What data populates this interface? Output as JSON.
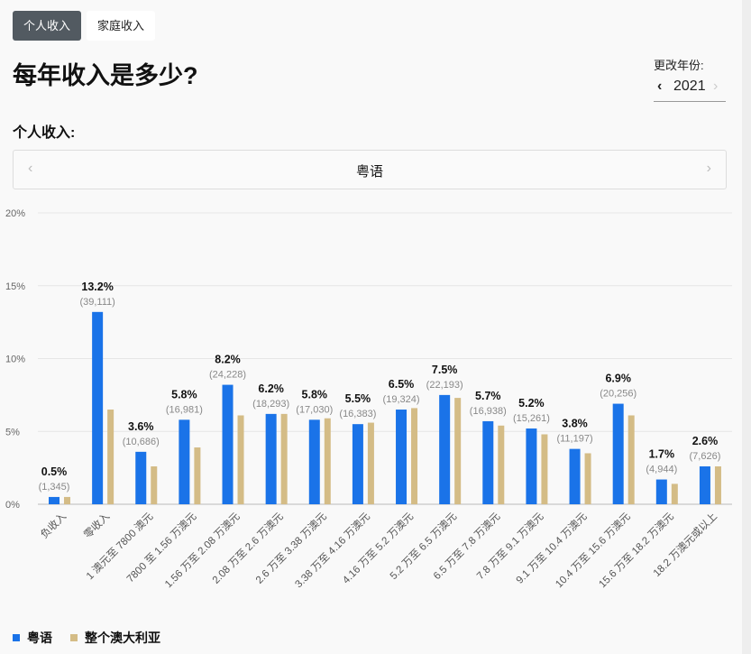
{
  "tabs": [
    "个人收入",
    "家庭收入"
  ],
  "title": "每年收入是多少?",
  "year_selector": {
    "label": "更改年份:",
    "value": "2021",
    "prev_icon": "chevron-left-icon",
    "next_icon": "chevron-right-icon"
  },
  "subtitle": "个人收入:",
  "carousel": {
    "value": "粤语",
    "prev_icon": "chevron-left-icon",
    "next_icon": "chevron-right-icon"
  },
  "chart_data": {
    "type": "bar",
    "ylim": [
      0,
      20
    ],
    "yticks": [
      "0%",
      "5%",
      "10%",
      "15%",
      "20%"
    ],
    "grid": true,
    "legend_placement": "bottom-left",
    "categories": [
      "负收入",
      "零收入",
      "1 澳元至 7800 澳元",
      "7800 至 1.56 万澳元",
      "1.56 万至 2.08 万澳元",
      "2.08 万至 2.6 万澳元",
      "2.6 万至 3.38 万澳元",
      "3.38 万至 4.16 万澳元",
      "4.16 万至 5.2 万澳元",
      "5.2 万至 6.5 万澳元",
      "6.5 万至 7.8 万澳元",
      "7.8 万至 9.1 万澳元",
      "9.1 万至 10.4 万澳元",
      "10.4 万至 15.6 万澳元",
      "15.6 万至 18.2 万澳元",
      "18.2 万澳元或以上"
    ],
    "series": [
      {
        "name": "粤语",
        "color": "#1a73e8",
        "values": [
          0.5,
          13.2,
          3.6,
          5.8,
          8.2,
          6.2,
          5.8,
          5.5,
          6.5,
          7.5,
          5.7,
          5.2,
          3.8,
          6.9,
          1.7,
          2.6
        ],
        "labels": [
          "0.5%",
          "13.2%",
          "3.6%",
          "5.8%",
          "8.2%",
          "6.2%",
          "5.8%",
          "5.5%",
          "6.5%",
          "7.5%",
          "5.7%",
          "5.2%",
          "3.8%",
          "6.9%",
          "1.7%",
          "2.6%"
        ],
        "counts": [
          "(1,345)",
          "(39,111)",
          "(10,686)",
          "(16,981)",
          "(24,228)",
          "(18,293)",
          "(17,030)",
          "(16,383)",
          "(19,324)",
          "(22,193)",
          "(16,938)",
          "(15,261)",
          "(11,197)",
          "(20,256)",
          "(4,944)",
          "(7,626)"
        ]
      },
      {
        "name": "整个澳大利亚",
        "color": "#d4bc86",
        "values": [
          0.5,
          6.5,
          2.6,
          3.9,
          6.1,
          6.2,
          5.9,
          5.6,
          6.6,
          7.3,
          5.4,
          4.8,
          3.5,
          6.1,
          1.4,
          2.6
        ]
      }
    ]
  }
}
